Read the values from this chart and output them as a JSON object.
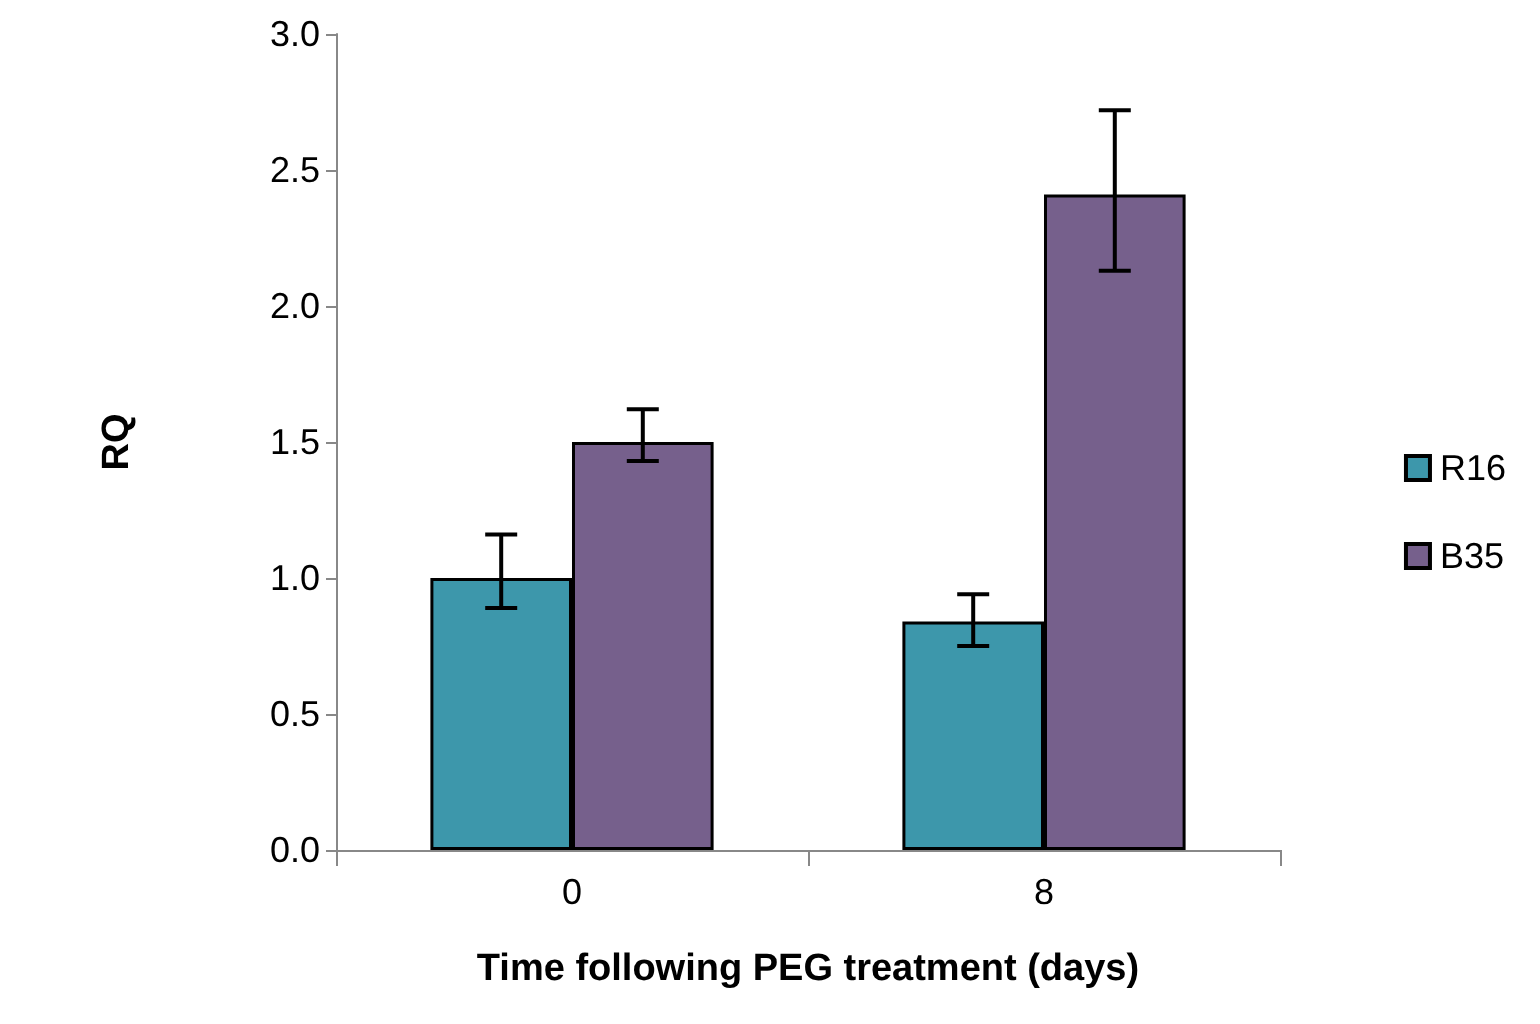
{
  "chart_data": {
    "type": "bar",
    "xlabel": "Time following PEG treatment (days)",
    "ylabel": "RQ",
    "categories": [
      "0",
      "8"
    ],
    "series": [
      {
        "name": "R16",
        "color": "#3d97ab",
        "values": [
          1.0,
          0.84
        ],
        "errors": [
          [
            0.89,
            1.16
          ],
          [
            0.75,
            0.94
          ]
        ]
      },
      {
        "name": "B35",
        "color": "#76608c",
        "values": [
          1.5,
          2.41
        ],
        "errors": [
          [
            1.43,
            1.62
          ],
          [
            2.13,
            2.72
          ]
        ]
      }
    ],
    "ylim": [
      0,
      3
    ],
    "yticks": [
      {
        "value": 0,
        "label": "0.0"
      },
      0.5,
      {
        "value": 1,
        "label": "1.0"
      },
      1.5,
      {
        "value": 2,
        "label": "2.0"
      },
      2.5,
      {
        "value": 3,
        "label": "3.0"
      }
    ],
    "grid": false,
    "legend": "right"
  }
}
